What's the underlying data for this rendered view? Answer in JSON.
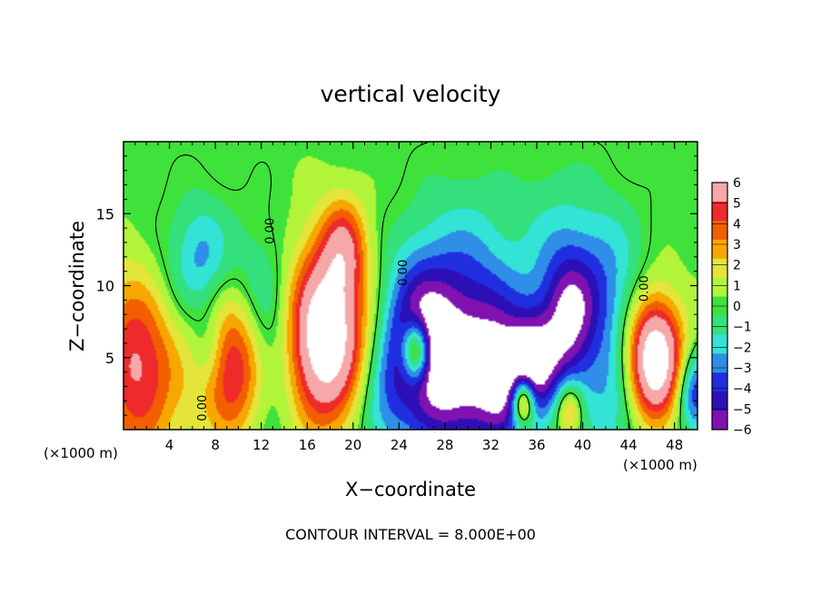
{
  "chart_data": {
    "type": "heatmap",
    "title": "vertical velocity",
    "xlabel": "X−coordinate",
    "ylabel": "Z−coordinate",
    "x_unit_left": "(×1000 m)",
    "x_unit_right": "(×1000 m)",
    "footer": "CONTOUR INTERVAL = 8.000E+00",
    "xlim": [
      0,
      50
    ],
    "ylim": [
      0,
      20
    ],
    "x_ticks": [
      4,
      8,
      12,
      16,
      20,
      24,
      28,
      32,
      36,
      40,
      44,
      48
    ],
    "y_ticks": [
      5,
      10,
      15
    ],
    "grid": false,
    "contour_labels": [
      {
        "text": "0.00",
        "x": 13.1,
        "z": 13.8
      },
      {
        "text": "0.00",
        "x": 24.7,
        "z": 10.9
      },
      {
        "text": "0.00",
        "x": 45.7,
        "z": 9.8
      },
      {
        "text": "0.00",
        "x": 7.2,
        "z": 1.5
      }
    ],
    "colorbar": {
      "levels": [
        "6",
        "5",
        "4",
        "3",
        "2",
        "1",
        "0",
        "−1",
        "−2",
        "−3",
        "−4",
        "−5",
        "−6"
      ],
      "colors": [
        "#f6a8a8",
        "#ee2a2a",
        "#f25e00",
        "#f7a700",
        "#e4e43a",
        "#b2f43a",
        "#3ee23a",
        "#34e07c",
        "#32e3d6",
        "#2e8ee8",
        "#1f2fe0",
        "#2c10b6",
        "#7f12b0"
      ]
    },
    "features": [
      {
        "kind": "updraft",
        "x": 17.5,
        "z": 6.5,
        "w": 6.3,
        "peak": 10
      },
      {
        "kind": "updraft",
        "x": 19.2,
        "z": 12.8,
        "w": 3.5,
        "peak": 4
      },
      {
        "kind": "updraft",
        "x": 46.2,
        "z": 4.8,
        "w": 4.5,
        "peak": 10
      },
      {
        "kind": "updraft",
        "x": 38.8,
        "z": 1.5,
        "w": 2.2,
        "peak": 4.5
      },
      {
        "kind": "updraft",
        "x": 1.0,
        "z": 4.5,
        "w": 7.5,
        "peak": 10
      },
      {
        "kind": "updraft",
        "x": 9.8,
        "z": 4.8,
        "w": 5.5,
        "peak": 10
      },
      {
        "kind": "updraft",
        "x": 25.5,
        "z": 5.5,
        "w": 2.2,
        "peak": 8
      },
      {
        "kind": "updraft",
        "x": 34.8,
        "z": 2.0,
        "w": 1.8,
        "peak": 8
      },
      {
        "kind": "downdraft",
        "x": 11.3,
        "z": 6.0,
        "w": 6.5,
        "peak": -6
      },
      {
        "kind": "downdraft",
        "x": 0.5,
        "z": 4.5,
        "w": 8.5,
        "peak": -4.5
      },
      {
        "kind": "downdraft",
        "x": 7.5,
        "z": 5.5,
        "w": 3.0,
        "peak": -2.5
      },
      {
        "kind": "downdraft",
        "x": 25.5,
        "z": 6.5,
        "w": 5.5,
        "peak": -5.5
      },
      {
        "kind": "downdraft",
        "x": 29.8,
        "z": 6.5,
        "w": 8.5,
        "peak": -5.5
      },
      {
        "kind": "downdraft",
        "x": 33.0,
        "z": 3.5,
        "w": 5.0,
        "peak": -5
      },
      {
        "kind": "downdraft",
        "x": 35.5,
        "z": 4.5,
        "w": 3.5,
        "peak": -4.5
      },
      {
        "kind": "downdraft",
        "x": 39.0,
        "z": 9.0,
        "w": 4.0,
        "peak": -2.5
      },
      {
        "kind": "downdraft",
        "x": 38.5,
        "z": 7.0,
        "w": 5.0,
        "peak": -2.5
      },
      {
        "kind": "downdraft",
        "x": 38.0,
        "z": 4.5,
        "w": 4.5,
        "peak": -2.5
      },
      {
        "kind": "downdraft",
        "x": 43.0,
        "z": 2.0,
        "w": 5.0,
        "peak": -2.5
      },
      {
        "kind": "downdraft",
        "x": 7.0,
        "z": 12.0,
        "w": 4.0,
        "peak": -2.5
      },
      {
        "kind": "downdraft",
        "x": 4.5,
        "z": 10.5,
        "w": 5.0,
        "peak": -1.5
      },
      {
        "kind": "downdraft",
        "x": 42.0,
        "z": 10.0,
        "w": 6.0,
        "peak": -3
      },
      {
        "kind": "downdraft",
        "x": 37.5,
        "z": 13.0,
        "w": 6.0,
        "peak": -1.5
      },
      {
        "kind": "downdraft",
        "x": 49.8,
        "z": 2.5,
        "w": 3.0,
        "peak": -5
      },
      {
        "kind": "downdraft",
        "x": 22.5,
        "z": 1.5,
        "w": 4.5,
        "peak": -2.5
      },
      {
        "kind": "downdraft",
        "x": 28.0,
        "z": 2.5,
        "w": 5.0,
        "peak": -2.5
      }
    ]
  }
}
